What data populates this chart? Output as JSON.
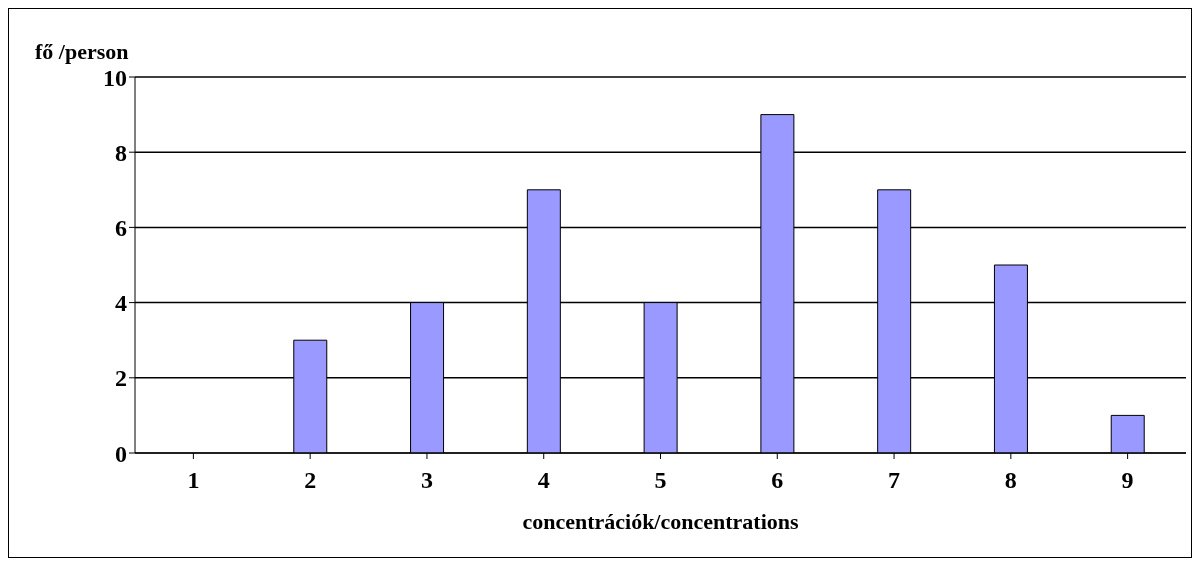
{
  "chart_data": {
    "type": "bar",
    "ylabel": "fő /person",
    "xlabel": "concentrációk/concentrations",
    "categories": [
      "1",
      "2",
      "3",
      "4",
      "5",
      "6",
      "7",
      "8",
      "9"
    ],
    "values": [
      0,
      3,
      4,
      7,
      4,
      9,
      7,
      5,
      1
    ],
    "color": "#9999ff",
    "ylim": [
      0,
      10
    ],
    "yticks": [
      0,
      2,
      4,
      6,
      8,
      10
    ],
    "grid": "y"
  }
}
